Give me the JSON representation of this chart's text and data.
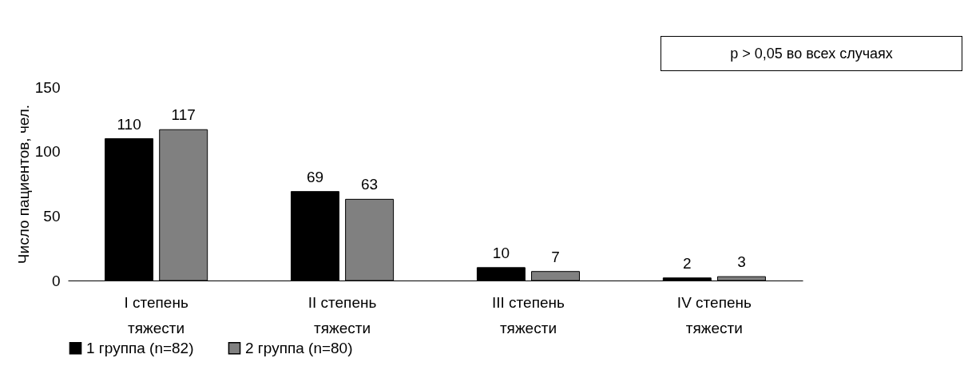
{
  "chart_data": {
    "type": "bar",
    "ylabel": "Число пациентов, чел.",
    "categories": [
      "I степень тяжести",
      "II степень тяжести",
      "III степень тяжести",
      "IV степень тяжести"
    ],
    "series": [
      {
        "name": "1 группа (n=82)",
        "color": "#000000",
        "values": [
          110,
          69,
          10,
          2
        ]
      },
      {
        "name": "2 группа (n=80)",
        "color": "#808080",
        "values": [
          117,
          63,
          7,
          3
        ]
      }
    ],
    "ylim": [
      0,
      150
    ],
    "yticks": [
      0,
      50,
      100,
      150
    ],
    "grid": false,
    "legend": "bottom",
    "data_labels": true,
    "annotations": [
      "p > 0,05 во всех случаях"
    ]
  }
}
